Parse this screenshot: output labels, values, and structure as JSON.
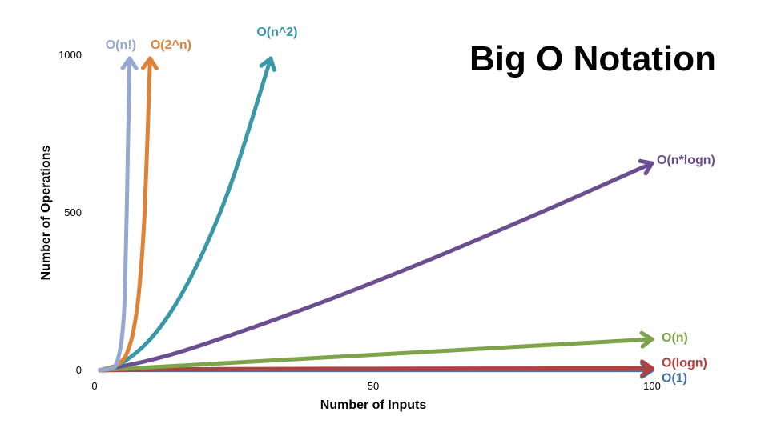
{
  "chart_data": {
    "type": "line",
    "title": "Big O Notation",
    "xlabel": "Number of Inputs",
    "ylabel": "Number of Operations",
    "xlim": [
      0,
      100
    ],
    "ylim": [
      0,
      1000
    ],
    "x_ticks": [
      "0",
      "50",
      "100"
    ],
    "y_ticks": [
      "0",
      "500",
      "1000"
    ],
    "grid": false,
    "legend": "labels at line ends",
    "series": [
      {
        "name": "O(1)",
        "color": "#4472A8",
        "x": [
          1,
          100
        ],
        "y": [
          1,
          1
        ]
      },
      {
        "name": "O(logn)",
        "color": "#B0413E",
        "x": [
          1,
          10,
          25,
          50,
          75,
          100
        ],
        "y": [
          0,
          3.3,
          4.6,
          5.6,
          6.2,
          6.6
        ]
      },
      {
        "name": "O(n)",
        "color": "#7FA34A",
        "x": [
          1,
          25,
          50,
          75,
          100
        ],
        "y": [
          1,
          25,
          50,
          75,
          100
        ]
      },
      {
        "name": "O(n*logn)",
        "color": "#6B4E8F",
        "x": [
          1,
          10,
          20,
          40,
          60,
          80,
          100
        ],
        "y": [
          0,
          33,
          86,
          213,
          354,
          506,
          664
        ]
      },
      {
        "name": "O(n^2)",
        "color": "#3A97A8",
        "x": [
          1,
          5,
          10,
          15,
          20,
          25,
          31.6
        ],
        "y": [
          1,
          25,
          100,
          225,
          400,
          625,
          1000
        ]
      },
      {
        "name": "O(2^n)",
        "color": "#DE8238",
        "x": [
          1,
          3,
          5,
          6,
          7,
          8,
          9,
          9.97
        ],
        "y": [
          2,
          8,
          32,
          64,
          128,
          256,
          512,
          1000
        ]
      },
      {
        "name": "O(n!)",
        "color": "#94A8D2",
        "x": [
          1,
          3,
          4,
          5,
          5.5,
          6,
          6.3
        ],
        "y": [
          1,
          6,
          24,
          120,
          287,
          720,
          1000
        ]
      }
    ]
  }
}
